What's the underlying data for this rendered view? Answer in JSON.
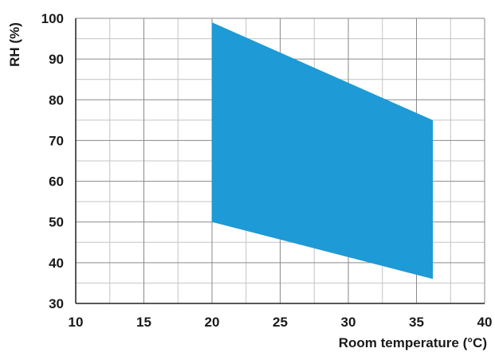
{
  "chart_data": {
    "type": "area",
    "title": "",
    "xlabel": "Room temperature (°C)",
    "ylabel": "RH (%)",
    "xlim": [
      10,
      40
    ],
    "ylim": [
      30,
      100
    ],
    "x_ticks": [
      "10",
      "15",
      "20",
      "25",
      "30",
      "35",
      "40"
    ],
    "y_ticks": [
      "30",
      "40",
      "50",
      "60",
      "70",
      "80",
      "90",
      "100"
    ],
    "grid": true,
    "minor_grid": true,
    "legend": "none",
    "fill_color": "#1e9ad6",
    "series": [
      {
        "upper": [
          {
            "x": 20,
            "y": 99
          },
          {
            "x": 36.2,
            "y": 75
          }
        ],
        "lower": [
          {
            "x": 20,
            "y": 50
          },
          {
            "x": 36.2,
            "y": 36
          }
        ]
      }
    ]
  }
}
